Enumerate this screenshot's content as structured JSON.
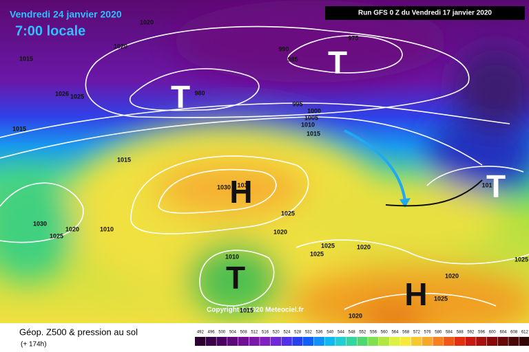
{
  "header": {
    "valid_date": "Vendredi 24 janvier 2020",
    "local_time": "7:00 locale",
    "run": "Run GFS 0 Z du Vendredi 17 janvier 2020"
  },
  "map": {
    "copyright": "Copyright © 2020 Meteociel.fr",
    "systems": [
      {
        "label": "T"
      },
      {
        "label": "T"
      },
      {
        "label": "H"
      },
      {
        "label": "T"
      },
      {
        "label": "H"
      },
      {
        "label": "T"
      }
    ],
    "isobar_labels": [
      "1020",
      "1020",
      "1015",
      "1026",
      "1025",
      "1015",
      "990",
      "985",
      "975",
      "980",
      "995",
      "1000",
      "1005",
      "1010",
      "1015",
      "1015",
      "1030",
      "103",
      "1025",
      "1030",
      "1020",
      "1010",
      "1025",
      "1020",
      "1010",
      "1025",
      "1025",
      "1020",
      "1020",
      "1025",
      "1025",
      "1020",
      "1015",
      "101"
    ]
  },
  "legend": {
    "title": "Géop. Z500 & pression au sol",
    "lead": "(+ 174h)",
    "items": [
      {
        "value": 492,
        "color": "#2a0030"
      },
      {
        "value": 496,
        "color": "#3a0048"
      },
      {
        "value": 500,
        "color": "#4a0060"
      },
      {
        "value": 504,
        "color": "#5c0878"
      },
      {
        "value": 508,
        "color": "#6e1090"
      },
      {
        "value": 512,
        "color": "#7a18a8"
      },
      {
        "value": 516,
        "color": "#8020c0"
      },
      {
        "value": 520,
        "color": "#7028d8"
      },
      {
        "value": 524,
        "color": "#5030e8"
      },
      {
        "value": 528,
        "color": "#2840f0"
      },
      {
        "value": 532,
        "color": "#1060f8"
      },
      {
        "value": 536,
        "color": "#1090f8"
      },
      {
        "value": 540,
        "color": "#10b8f0"
      },
      {
        "value": 544,
        "color": "#20d0d0"
      },
      {
        "value": 548,
        "color": "#30d8a0"
      },
      {
        "value": 552,
        "color": "#50d870"
      },
      {
        "value": 556,
        "color": "#80e050"
      },
      {
        "value": 560,
        "color": "#b0e840"
      },
      {
        "value": 564,
        "color": "#e0f040"
      },
      {
        "value": 568,
        "color": "#f8e838"
      },
      {
        "value": 572,
        "color": "#f8c830"
      },
      {
        "value": 576,
        "color": "#f8a828"
      },
      {
        "value": 580,
        "color": "#f88020"
      },
      {
        "value": 584,
        "color": "#f05818"
      },
      {
        "value": 588,
        "color": "#e03010"
      },
      {
        "value": 592,
        "color": "#c81810"
      },
      {
        "value": 596,
        "color": "#a81010"
      },
      {
        "value": 600,
        "color": "#880808"
      },
      {
        "value": 604,
        "color": "#680808"
      },
      {
        "value": 608,
        "color": "#480808"
      },
      {
        "value": 612,
        "color": "#300808"
      }
    ]
  }
}
